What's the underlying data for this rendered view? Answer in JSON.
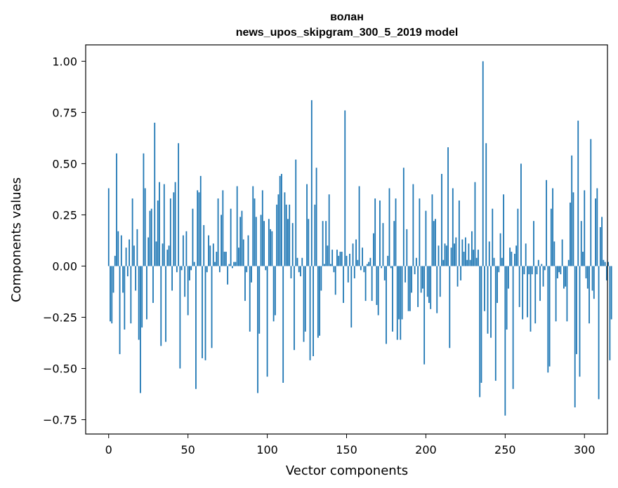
{
  "chart_data": {
    "type": "bar",
    "title_lines": [
      "волан",
      "news_upos_skipgram_300_5_2019 model"
    ],
    "xlabel": "Vector components",
    "ylabel": "Components values",
    "xlim": [
      -14.5,
      314.5
    ],
    "ylim": [
      -0.82,
      1.08
    ],
    "xticks": [
      0,
      50,
      100,
      150,
      200,
      250,
      300
    ],
    "xtick_labels": [
      "0",
      "50",
      "100",
      "150",
      "200",
      "250",
      "300"
    ],
    "yticks": [
      -0.75,
      -0.5,
      -0.25,
      0.0,
      0.25,
      0.5,
      0.75,
      1.0
    ],
    "ytick_labels": [
      "−0.75",
      "−0.50",
      "−0.25",
      "0.00",
      "0.25",
      "0.50",
      "0.75",
      "1.00"
    ],
    "bar_color": "#1f77b4",
    "grid": false,
    "values": [
      0.38,
      -0.27,
      -0.28,
      -0.13,
      0.05,
      0.55,
      0.17,
      -0.43,
      0.15,
      -0.13,
      -0.31,
      0.09,
      -0.05,
      0.13,
      -0.28,
      0.33,
      0.1,
      -0.12,
      0.18,
      -0.36,
      -0.62,
      -0.3,
      0.55,
      0.38,
      -0.26,
      0.14,
      0.27,
      0.28,
      -0.18,
      0.7,
      0.12,
      0.32,
      0.41,
      -0.39,
      0.11,
      0.4,
      -0.37,
      0.08,
      0.1,
      0.33,
      -0.12,
      0.36,
      0.41,
      -0.03,
      0.6,
      -0.5,
      -0.02,
      0.15,
      -0.15,
      0.17,
      -0.24,
      -0.07,
      -0.02,
      0.28,
      0.02,
      -0.6,
      0.37,
      0.36,
      0.44,
      -0.45,
      0.2,
      -0.46,
      -0.03,
      0.15,
      0.1,
      -0.4,
      0.11,
      0.02,
      0.07,
      0.33,
      -0.03,
      0.25,
      0.37,
      0.07,
      0.07,
      -0.09,
      0.01,
      0.28,
      -0.01,
      0.02,
      0.02,
      0.39,
      0.09,
      0.24,
      0.27,
      0.13,
      -0.17,
      -0.03,
      0.15,
      -0.32,
      -0.08,
      0.39,
      0.33,
      0.24,
      -0.62,
      -0.33,
      0.25,
      0.37,
      0.22,
      -0.02,
      -0.54,
      0.23,
      0.18,
      0.17,
      -0.27,
      -0.24,
      0.3,
      0.35,
      0.44,
      0.45,
      -0.57,
      0.36,
      0.3,
      0.23,
      0.3,
      -0.06,
      0.21,
      -0.41,
      0.52,
      0.04,
      -0.03,
      -0.05,
      0.04,
      -0.37,
      -0.32,
      0.4,
      0.23,
      -0.46,
      0.81,
      -0.44,
      0.3,
      0.48,
      -0.35,
      -0.34,
      -0.12,
      0.22,
      0.01,
      0.22,
      0.1,
      0.35,
      0.01,
      0.08,
      -0.03,
      -0.14,
      0.08,
      0.05,
      0.07,
      0.07,
      -0.18,
      0.76,
      0.05,
      -0.08,
      0.06,
      -0.3,
      0.11,
      -0.06,
      0.13,
      0.03,
      0.39,
      -0.02,
      0.09,
      -0.03,
      -0.17,
      0.01,
      0.02,
      0.04,
      -0.17,
      0.16,
      0.33,
      -0.19,
      -0.24,
      0.32,
      -0.01,
      0.21,
      -0.07,
      -0.38,
      0.05,
      0.38,
      -0.01,
      -0.32,
      0.22,
      0.33,
      -0.36,
      -0.26,
      -0.36,
      -0.26,
      0.48,
      -0.08,
      0.18,
      -0.22,
      -0.22,
      -0.13,
      0.4,
      -0.04,
      0.04,
      -0.2,
      0.33,
      -0.13,
      -0.11,
      -0.48,
      0.27,
      -0.15,
      -0.18,
      -0.21,
      0.35,
      0.22,
      0.23,
      -0.23,
      0.1,
      -0.15,
      0.45,
      0.03,
      0.11,
      0.1,
      0.58,
      -0.4,
      0.09,
      0.38,
      0.11,
      0.14,
      -0.1,
      0.32,
      -0.07,
      0.13,
      0.07,
      0.14,
      0.03,
      0.11,
      0.03,
      0.17,
      0.08,
      0.41,
      0.04,
      0.08,
      -0.64,
      -0.57,
      1.0,
      -0.22,
      0.6,
      -0.33,
      0.12,
      -0.35,
      0.28,
      0.04,
      -0.56,
      -0.18,
      -0.03,
      0.16,
      0.04,
      0.35,
      -0.73,
      -0.31,
      -0.11,
      0.09,
      0.07,
      -0.6,
      0.06,
      0.1,
      0.28,
      -0.2,
      0.5,
      -0.26,
      -0.04,
      0.11,
      -0.25,
      -0.04,
      -0.32,
      -0.04,
      0.22,
      -0.28,
      -0.04,
      0.03,
      -0.17,
      0.01,
      -0.1,
      -0.02,
      0.42,
      -0.52,
      -0.49,
      0.28,
      0.38,
      0.12,
      -0.27,
      -0.06,
      -0.03,
      -0.04,
      0.13,
      -0.11,
      -0.1,
      -0.27,
      0.03,
      0.31,
      0.54,
      0.36,
      -0.69,
      -0.43,
      0.71,
      -0.54,
      0.22,
      0.07,
      0.37,
      -0.06,
      -0.11,
      -0.28,
      0.62,
      -0.12,
      -0.16,
      0.33,
      0.38,
      -0.65,
      0.19,
      0.24,
      0.03,
      0.02,
      -0.07,
      0.02,
      -0.46,
      -0.26
    ]
  }
}
